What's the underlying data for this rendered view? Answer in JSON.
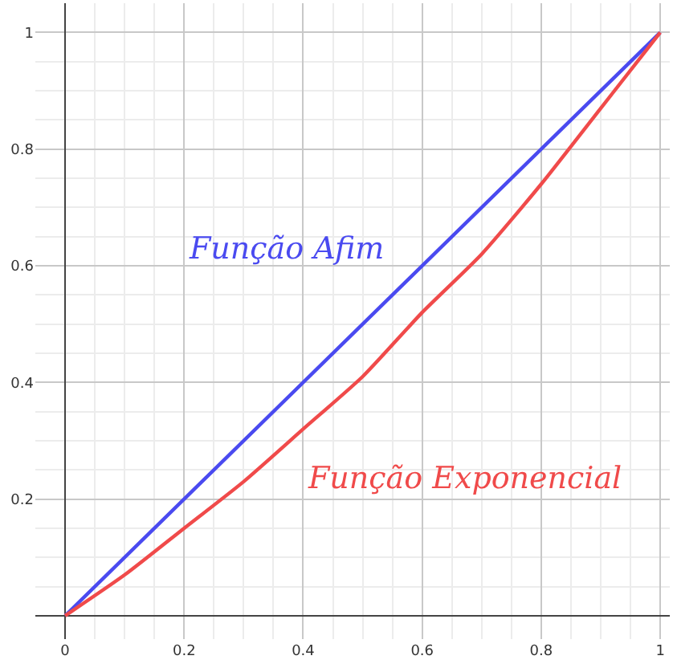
{
  "chart_data": {
    "type": "line",
    "xlim": [
      -0.05,
      1.016
    ],
    "ylim": [
      -0.04,
      1.05
    ],
    "xticks": [
      0,
      0.2,
      0.4,
      0.6,
      0.8,
      1
    ],
    "yticks": [
      {
        "value": 0,
        "label": null
      },
      0.2,
      0.4,
      0.6,
      0.8,
      1
    ],
    "grid": true,
    "legend": false,
    "marker": "none",
    "line_style": "solid",
    "series": [
      {
        "name": "Função Afim",
        "color": "#4a4af0",
        "x": [
          0,
          0.5,
          1
        ],
        "values": [
          0,
          0.5,
          1
        ]
      },
      {
        "name": "Função Exponencial",
        "color": "#f04a4a",
        "x": [
          0,
          0.1,
          0.2,
          0.3,
          0.4,
          0.5,
          0.6,
          0.7,
          0.8,
          0.9,
          1
        ],
        "values": [
          0,
          0.07,
          0.15,
          0.23,
          0.32,
          0.41,
          0.52,
          0.62,
          0.74,
          0.87,
          1
        ]
      }
    ]
  }
}
